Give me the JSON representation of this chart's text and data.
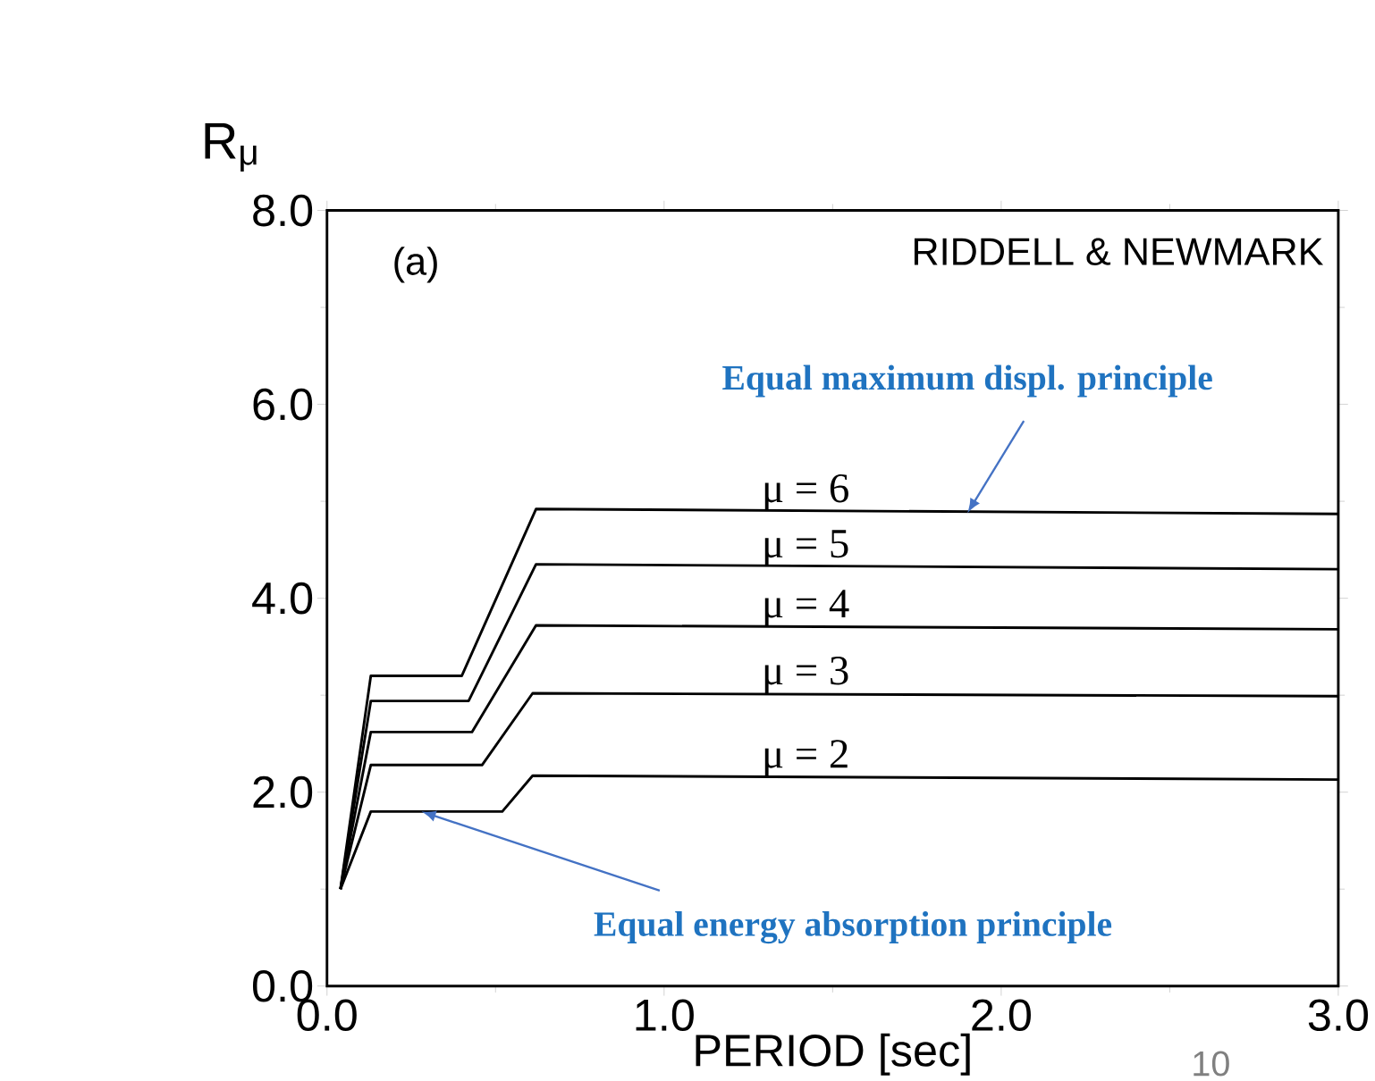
{
  "chart_data": {
    "type": "line",
    "xlabel": "PERIOD [sec]",
    "ylabel": "R$_{μ}$",
    "xlim": [
      0,
      3
    ],
    "ylim": [
      0,
      8
    ],
    "xticks": [
      {
        "value": 0,
        "label": "0.0"
      },
      {
        "value": 1,
        "label": "1.0"
      },
      {
        "value": 2,
        "label": "2.0"
      },
      {
        "value": 3,
        "label": "3.0"
      }
    ],
    "yticks": [
      {
        "value": 0,
        "label": "0.0"
      },
      {
        "value": 2,
        "label": "2.0"
      },
      {
        "value": 4,
        "label": "4.0"
      },
      {
        "value": 6,
        "label": "6.0"
      },
      {
        "value": 8,
        "label": "8.0"
      }
    ],
    "marker": "none",
    "line_style": "solid",
    "series": [
      {
        "name": "μ = 6",
        "color": "#000000",
        "x": [
          0.04,
          0.13,
          0.4,
          0.62,
          3.0
        ],
        "values": [
          1.0,
          3.2,
          3.2,
          4.92,
          4.87
        ]
      },
      {
        "name": "μ = 5",
        "color": "#000000",
        "x": [
          0.04,
          0.13,
          0.42,
          0.62,
          3.0
        ],
        "values": [
          1.0,
          2.94,
          2.94,
          4.35,
          4.3
        ]
      },
      {
        "name": "μ = 4",
        "color": "#000000",
        "x": [
          0.04,
          0.13,
          0.43,
          0.62,
          3.0
        ],
        "values": [
          1.0,
          2.62,
          2.62,
          3.72,
          3.68
        ]
      },
      {
        "name": "μ = 3",
        "color": "#000000",
        "x": [
          0.04,
          0.13,
          0.46,
          0.61,
          3.0
        ],
        "values": [
          1.0,
          2.28,
          2.28,
          3.02,
          2.99
        ]
      },
      {
        "name": "μ = 2",
        "color": "#000000",
        "x": [
          0.04,
          0.13,
          0.52,
          0.61,
          3.0
        ],
        "values": [
          1.0,
          1.8,
          1.8,
          2.17,
          2.13
        ]
      }
    ],
    "annotations": [
      "(a)",
      "RIDDELL & NEWMARK",
      {
        "text": "Equal maximum displ. principle",
        "x": 1.9,
        "y": 4.88
      },
      {
        "text": "Equal energy absorption principle",
        "x": 0.28,
        "y": 1.8
      },
      "10"
    ]
  }
}
